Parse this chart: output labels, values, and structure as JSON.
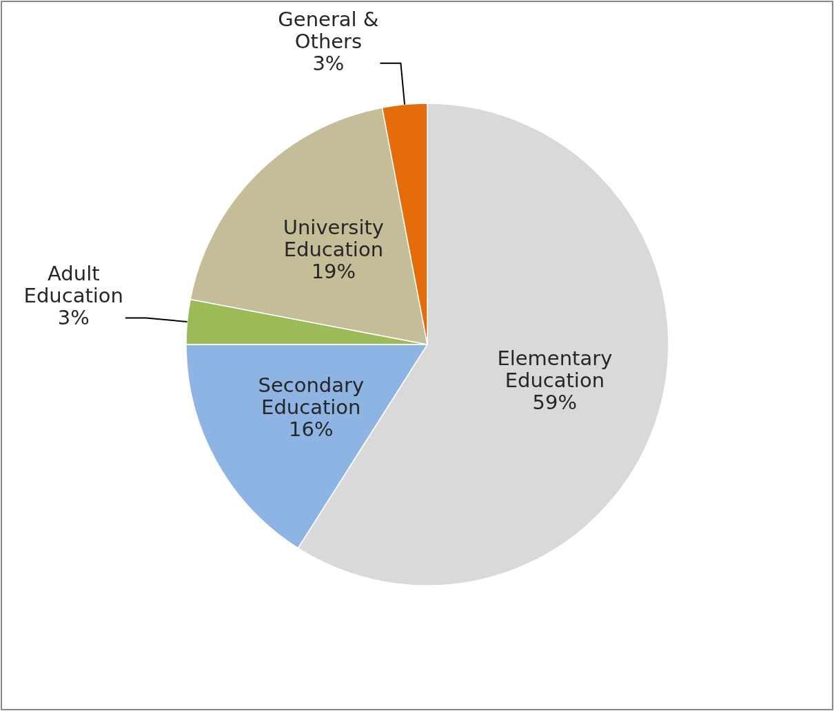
{
  "chart_data": {
    "type": "pie",
    "categories": [
      "Elementary Education",
      "Secondary Education",
      "Adult Education",
      "University Education",
      "General & Others"
    ],
    "values": [
      59,
      16,
      3,
      19,
      3
    ],
    "value_labels": [
      "59%",
      "16%",
      "3%",
      "19%",
      "3%"
    ],
    "colors": [
      "#d9d9d9",
      "#8eb4e3",
      "#9bbb59",
      "#c4bd97",
      "#e46c0a"
    ]
  }
}
